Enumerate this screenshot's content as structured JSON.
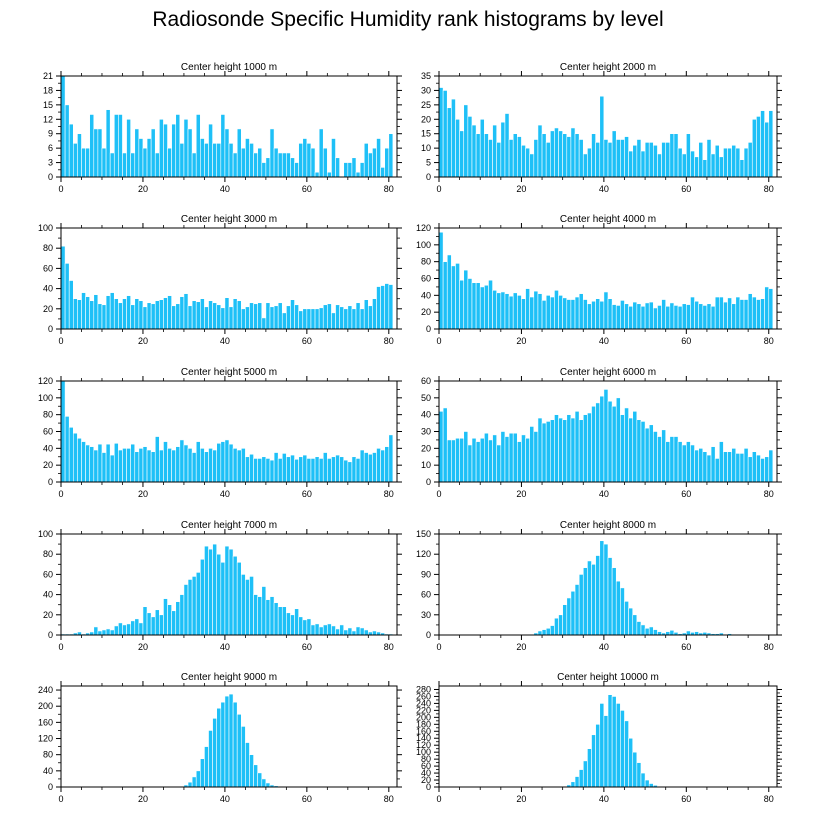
{
  "title": "Radiosonde Specific Humidity rank histograms by level",
  "colors": {
    "bar": "#1ec0f7",
    "bar_edge": "#ffffff",
    "axis": "#000000",
    "background": "#ffffff"
  },
  "chart_data": [
    {
      "type": "bar",
      "title": "Center height 1000 m",
      "xlim": [
        0,
        82
      ],
      "ylim": [
        0,
        21
      ],
      "xticks": [
        0,
        20,
        40,
        60,
        80
      ],
      "yticks": [
        0,
        3,
        6,
        9,
        12,
        15,
        18,
        21
      ],
      "categories_start": 0,
      "values": [
        21,
        15,
        11,
        7,
        9,
        6,
        6,
        13,
        10,
        10,
        6,
        14,
        5,
        13,
        13,
        5,
        12,
        5,
        10,
        8,
        6,
        8,
        10,
        5,
        12,
        11,
        6,
        11,
        13,
        7,
        12,
        10,
        5,
        13,
        8,
        7,
        11,
        7,
        7,
        13,
        10,
        7,
        5,
        10,
        6,
        8,
        7,
        5,
        6,
        3,
        4,
        10,
        6,
        5,
        5,
        5,
        4,
        3,
        7,
        8,
        7,
        6,
        1,
        10,
        6,
        1,
        8,
        4,
        0,
        3,
        3,
        4,
        1,
        3,
        7,
        5,
        6,
        8,
        2,
        6,
        9
      ],
      "xlabel": "",
      "ylabel": ""
    },
    {
      "type": "bar",
      "title": "Center height 2000 m",
      "xlim": [
        0,
        82
      ],
      "ylim": [
        0,
        35
      ],
      "xticks": [
        0,
        20,
        40,
        60,
        80
      ],
      "yticks": [
        0,
        5,
        10,
        15,
        20,
        25,
        30,
        35
      ],
      "categories_start": 0,
      "values": [
        31,
        30,
        24,
        27,
        20,
        16,
        25,
        21,
        18,
        15,
        20,
        15,
        13,
        18,
        12,
        19,
        22,
        13,
        15,
        14,
        11,
        10,
        8,
        13,
        18,
        15,
        12,
        16,
        17,
        16,
        15,
        14,
        17,
        15,
        13,
        8,
        10,
        15,
        12,
        28,
        13,
        12,
        16,
        13,
        13,
        14,
        9,
        11,
        13,
        9,
        12,
        12,
        11,
        8,
        12,
        12,
        15,
        15,
        10,
        8,
        15,
        9,
        7,
        12,
        6,
        13,
        8,
        11,
        7,
        10,
        10,
        11,
        10,
        6,
        10,
        12,
        20,
        21,
        23,
        19,
        23
      ],
      "xlabel": "",
      "ylabel": ""
    },
    {
      "type": "bar",
      "title": "Center height 3000 m",
      "xlim": [
        0,
        82
      ],
      "ylim": [
        0,
        100
      ],
      "xticks": [
        0,
        20,
        40,
        60,
        80
      ],
      "yticks": [
        0,
        20,
        40,
        60,
        80,
        100
      ],
      "categories_start": 0,
      "values": [
        82,
        65,
        48,
        30,
        29,
        36,
        32,
        28,
        34,
        25,
        24,
        33,
        36,
        30,
        26,
        30,
        33,
        24,
        30,
        28,
        22,
        26,
        25,
        28,
        29,
        31,
        33,
        23,
        25,
        32,
        35,
        23,
        28,
        27,
        30,
        22,
        28,
        26,
        24,
        21,
        31,
        22,
        30,
        28,
        20,
        22,
        26,
        25,
        26,
        11,
        26,
        22,
        23,
        26,
        16,
        23,
        29,
        24,
        18,
        20,
        20,
        20,
        20,
        21,
        24,
        25,
        16,
        24,
        22,
        20,
        23,
        20,
        26,
        20,
        29,
        23,
        30,
        42,
        43,
        45,
        44
      ],
      "xlabel": "",
      "ylabel": ""
    },
    {
      "type": "bar",
      "title": "Center height 4000 m",
      "xlim": [
        0,
        82
      ],
      "ylim": [
        0,
        120
      ],
      "xticks": [
        0,
        20,
        40,
        60,
        80
      ],
      "yticks": [
        0,
        20,
        40,
        60,
        80,
        100,
        120
      ],
      "categories_start": 0,
      "values": [
        115,
        80,
        88,
        75,
        78,
        58,
        70,
        60,
        55,
        55,
        50,
        52,
        58,
        46,
        43,
        44,
        42,
        39,
        43,
        40,
        36,
        48,
        38,
        45,
        42,
        34,
        40,
        38,
        46,
        40,
        37,
        35,
        35,
        38,
        42,
        35,
        30,
        33,
        36,
        33,
        44,
        36,
        29,
        28,
        34,
        30,
        27,
        32,
        30,
        27,
        31,
        32,
        25,
        28,
        35,
        27,
        31,
        28,
        27,
        30,
        29,
        38,
        33,
        30,
        28,
        30,
        27,
        38,
        38,
        32,
        37,
        30,
        38,
        35,
        35,
        42,
        38,
        35,
        36,
        50,
        48
      ],
      "xlabel": "",
      "ylabel": ""
    },
    {
      "type": "bar",
      "title": "Center height 5000 m",
      "xlim": [
        0,
        82
      ],
      "ylim": [
        0,
        120
      ],
      "xticks": [
        0,
        20,
        40,
        60,
        80
      ],
      "yticks": [
        0,
        20,
        40,
        60,
        80,
        100,
        120
      ],
      "categories_start": 0,
      "values": [
        120,
        78,
        65,
        58,
        52,
        48,
        44,
        42,
        38,
        45,
        35,
        45,
        32,
        46,
        38,
        40,
        40,
        45,
        36,
        40,
        42,
        38,
        36,
        54,
        38,
        48,
        40,
        38,
        42,
        50,
        44,
        40,
        35,
        48,
        40,
        36,
        40,
        38,
        46,
        48,
        50,
        45,
        40,
        38,
        40,
        30,
        33,
        28,
        28,
        30,
        28,
        26,
        35,
        28,
        34,
        30,
        32,
        27,
        30,
        32,
        28,
        28,
        30,
        28,
        35,
        28,
        30,
        32,
        30,
        26,
        24,
        30,
        28,
        38,
        35,
        33,
        35,
        40,
        38,
        42,
        56
      ],
      "xlabel": "",
      "ylabel": ""
    },
    {
      "type": "bar",
      "title": "Center height 6000 m",
      "xlim": [
        0,
        82
      ],
      "ylim": [
        0,
        60
      ],
      "xticks": [
        0,
        20,
        40,
        60,
        80
      ],
      "yticks": [
        0,
        10,
        20,
        30,
        40,
        50,
        60
      ],
      "categories_start": 0,
      "values": [
        42,
        44,
        25,
        25,
        26,
        26,
        30,
        22,
        26,
        24,
        26,
        29,
        25,
        28,
        22,
        30,
        27,
        29,
        29,
        24,
        28,
        26,
        33,
        30,
        38,
        35,
        36,
        37,
        40,
        38,
        37,
        40,
        38,
        42,
        37,
        40,
        41,
        45,
        47,
        51,
        55,
        48,
        45,
        50,
        40,
        44,
        38,
        42,
        37,
        36,
        32,
        34,
        30,
        27,
        31,
        24,
        27,
        27,
        24,
        22,
        24,
        22,
        19,
        20,
        18,
        16,
        21,
        14,
        24,
        18,
        18,
        20,
        17,
        17,
        20,
        15,
        18,
        16,
        14,
        15,
        19
      ],
      "xlabel": "",
      "ylabel": ""
    },
    {
      "type": "bar",
      "title": "Center height 7000 m",
      "xlim": [
        0,
        82
      ],
      "ylim": [
        0,
        100
      ],
      "xticks": [
        0,
        20,
        40,
        60,
        80
      ],
      "yticks": [
        0,
        20,
        40,
        60,
        80,
        100
      ],
      "categories_start": 0,
      "values": [
        1,
        1,
        1,
        2,
        3,
        1,
        2,
        3,
        8,
        4,
        5,
        6,
        5,
        9,
        12,
        10,
        11,
        14,
        16,
        12,
        28,
        22,
        18,
        25,
        20,
        36,
        30,
        24,
        33,
        40,
        50,
        55,
        58,
        62,
        75,
        88,
        85,
        90,
        80,
        72,
        88,
        85,
        78,
        72,
        60,
        55,
        58,
        40,
        38,
        48,
        35,
        38,
        32,
        28,
        28,
        22,
        20,
        26,
        18,
        15,
        16,
        10,
        11,
        8,
        10,
        11,
        9,
        6,
        10,
        5,
        7,
        4,
        8,
        7,
        5,
        3,
        4,
        3,
        2,
        1,
        1
      ],
      "xlabel": "",
      "ylabel": ""
    },
    {
      "type": "bar",
      "title": "Center height 8000 m",
      "xlim": [
        0,
        82
      ],
      "ylim": [
        0,
        150
      ],
      "xticks": [
        0,
        20,
        40,
        60,
        80
      ],
      "yticks": [
        0,
        30,
        60,
        90,
        120,
        150
      ],
      "categories_start": 0,
      "values": [
        0,
        0,
        0,
        0,
        0,
        0,
        0,
        0,
        0,
        0,
        0,
        0,
        0,
        0,
        0,
        0,
        0,
        0,
        0,
        0,
        0,
        0,
        1,
        3,
        6,
        8,
        10,
        14,
        25,
        30,
        45,
        55,
        65,
        75,
        90,
        100,
        110,
        105,
        118,
        140,
        135,
        115,
        100,
        80,
        70,
        50,
        40,
        30,
        20,
        15,
        10,
        12,
        8,
        5,
        3,
        5,
        7,
        4,
        2,
        3,
        6,
        4,
        5,
        3,
        4,
        3,
        2,
        2,
        3,
        1,
        2,
        1,
        1,
        0,
        0,
        0,
        0,
        0,
        0,
        0,
        1
      ],
      "xlabel": "",
      "ylabel": ""
    },
    {
      "type": "bar",
      "title": "Center height 9000 m",
      "xlim": [
        0,
        82
      ],
      "ylim": [
        0,
        250
      ],
      "xticks": [
        0,
        20,
        40,
        60,
        80
      ],
      "yticks": [
        0,
        40,
        80,
        120,
        160,
        200,
        240
      ],
      "categories_start": 0,
      "values": [
        0,
        0,
        0,
        0,
        0,
        0,
        0,
        0,
        0,
        0,
        0,
        0,
        0,
        0,
        0,
        0,
        0,
        0,
        0,
        0,
        0,
        0,
        0,
        0,
        0,
        0,
        0,
        0,
        0,
        2,
        5,
        12,
        25,
        40,
        70,
        100,
        140,
        170,
        195,
        210,
        225,
        230,
        210,
        180,
        150,
        110,
        80,
        55,
        35,
        20,
        10,
        5,
        3,
        1,
        0,
        0,
        0,
        0,
        0,
        0,
        0,
        0,
        0,
        0,
        0,
        0,
        0,
        0,
        0,
        0,
        0,
        0,
        0,
        0,
        0,
        0,
        0,
        0,
        0,
        0,
        0
      ],
      "xlabel": "",
      "ylabel": ""
    },
    {
      "type": "bar",
      "title": "Center height 10000 m",
      "xlim": [
        0,
        82
      ],
      "ylim": [
        0,
        290
      ],
      "xticks": [
        0,
        20,
        40,
        60,
        80
      ],
      "yticks": [
        0,
        20,
        40,
        60,
        80,
        100,
        120,
        140,
        160,
        180,
        200,
        220,
        240,
        260,
        280
      ],
      "categories_start": 0,
      "values": [
        0,
        0,
        0,
        0,
        0,
        0,
        0,
        0,
        0,
        0,
        0,
        0,
        0,
        0,
        0,
        0,
        0,
        0,
        0,
        0,
        0,
        0,
        0,
        0,
        0,
        0,
        0,
        0,
        0,
        0,
        2,
        6,
        15,
        30,
        50,
        75,
        110,
        150,
        180,
        240,
        205,
        265,
        260,
        240,
        220,
        190,
        140,
        100,
        70,
        40,
        20,
        10,
        5,
        2,
        1,
        0,
        0,
        0,
        0,
        0,
        0,
        0,
        0,
        0,
        0,
        0,
        0,
        0,
        0,
        0,
        0,
        0,
        0,
        0,
        0,
        0,
        0,
        0,
        0,
        0,
        0
      ],
      "xlabel": "",
      "ylabel": ""
    }
  ]
}
